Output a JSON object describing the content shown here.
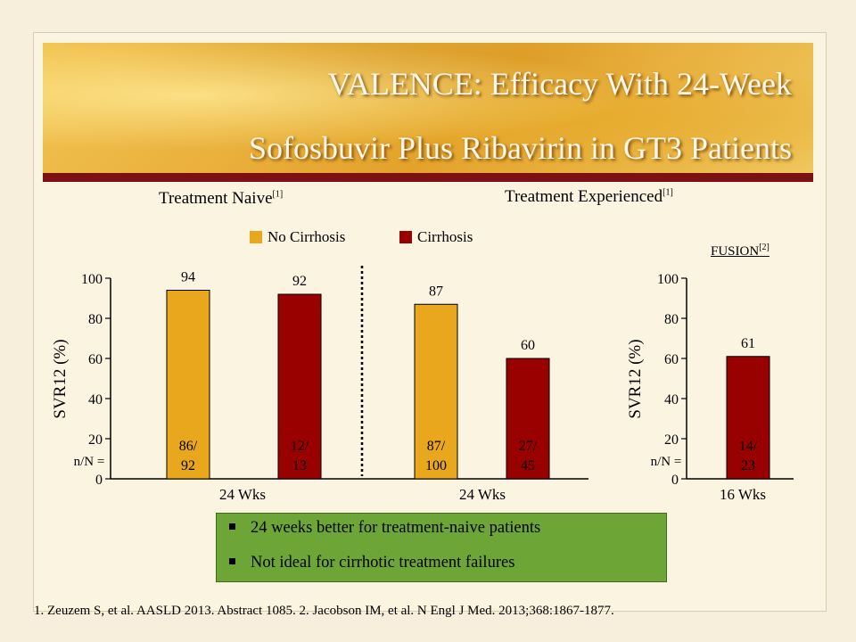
{
  "title": {
    "line1": "VALENCE: Efficacy With 24-Week",
    "line2": "Sofosbuvir Plus Ribavirin in GT3 Patients"
  },
  "sections": {
    "naive": {
      "label": "Treatment Naive",
      "ref": "[1]"
    },
    "experienced": {
      "label": "Treatment Experienced",
      "ref": "[1]"
    },
    "fusion": {
      "label": "FUSION",
      "ref": "[2]"
    }
  },
  "legend": [
    {
      "label": "No Cirrhosis",
      "color": "#e8a71c"
    },
    {
      "label": "Cirrhosis",
      "color": "#990000"
    }
  ],
  "chart_data": [
    {
      "type": "bar",
      "ylabel": "SVR12 (%)",
      "ylim": [
        0,
        100
      ],
      "yticks": [
        "0",
        "20",
        "40",
        "60",
        "80",
        "100"
      ],
      "nN_label": "n/N =",
      "groups": [
        {
          "name": "Treatment Naive",
          "xlabel": "24 Wks",
          "bars": [
            {
              "series": "No Cirrhosis",
              "value": 94,
              "label": "94",
              "n_line1": "86/",
              "n_line2": "92",
              "color": "#e8a71c"
            },
            {
              "series": "Cirrhosis",
              "value": 92,
              "label": "92",
              "n_line1": "12/",
              "n_line2": "13",
              "color": "#990000"
            }
          ]
        },
        {
          "name": "Treatment Experienced",
          "xlabel": "24 Wks",
          "bars": [
            {
              "series": "No Cirrhosis",
              "value": 87,
              "label": "87",
              "n_line1": "87/",
              "n_line2": "100",
              "color": "#e8a71c"
            },
            {
              "series": "Cirrhosis",
              "value": 60,
              "label": "60",
              "n_line1": "27/",
              "n_line2": "45",
              "color": "#990000"
            }
          ]
        }
      ]
    },
    {
      "type": "bar",
      "ylabel": "SVR12 (%)",
      "ylim": [
        0,
        100
      ],
      "yticks": [
        "0",
        "20",
        "40",
        "60",
        "80",
        "100"
      ],
      "nN_label": "n/N =",
      "groups": [
        {
          "name": "FUSION",
          "xlabel": "16 Wks",
          "bars": [
            {
              "series": "Cirrhosis",
              "value": 61,
              "label": "61",
              "n_line1": "14/",
              "n_line2": "23",
              "color": "#990000"
            }
          ]
        }
      ]
    }
  ],
  "notes": [
    "24 weeks better for treatment-naive patients",
    "Not ideal for cirrhotic treatment failures"
  ],
  "references": "1. Zeuzem S, et al. AASLD 2013. Abstract 1085. 2. Jacobson IM, et al. N Engl J Med. 2013;368:1867-1877."
}
